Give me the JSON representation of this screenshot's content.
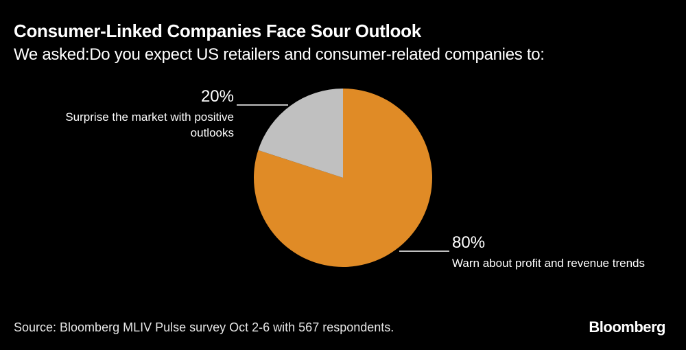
{
  "title": "Consumer-Linked Companies Face Sour Outlook",
  "subtitle": "We asked:Do you expect US retailers and consumer-related companies to:",
  "source": "Source: Bloomberg MLIV Pulse survey Oct 2-6 with 567 respondents.",
  "logo": "Bloomberg",
  "chart_data": {
    "type": "pie",
    "slices": [
      {
        "label": "Warn about profit and revenue trends",
        "value": 80,
        "display": "80%",
        "color": "#e08b26"
      },
      {
        "label": "Surprise the market with positive outlooks",
        "value": 20,
        "display": "20%",
        "color": "#c0c0c0"
      }
    ]
  }
}
